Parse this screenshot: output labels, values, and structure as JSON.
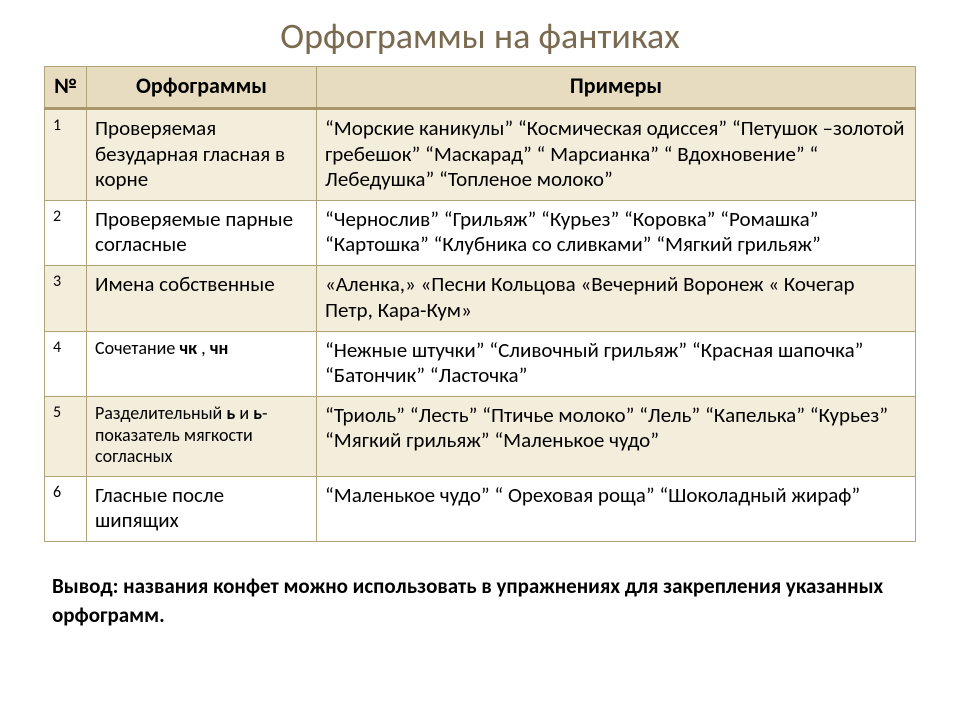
{
  "title": "Орфограммы на фантиках",
  "headers": {
    "num": "№",
    "orfo": "Орфограммы",
    "ex": "Примеры"
  },
  "rows": [
    {
      "n": "1",
      "orfo": "Проверяемая безударная гласная в корне",
      "ex": "“Морские каникулы” “Космическая одиссея” “Петушок –золотой гребешок” “Маскарад” “ Марсианка” “ Вдохновение” “ Лебедушка” “Топленое молоко”"
    },
    {
      "n": "2",
      "orfo": "Проверяемые парные согласные",
      "ex": "“Чернослив” “Грильяж” “Курьез” “Коровка” “Ромашка” “Картошка” “Клубника со сливками” “Мягкий грильяж”"
    },
    {
      "n": "3",
      "orfo": "Имена собственные",
      "ex": "«Аленка,» «Песни Кольцова «Вечерний Воронеж «  Кочегар Петр, Кара-Кум»"
    },
    {
      "n": "4",
      "orfo_pre": "Сочетание ",
      "orfo_b1": "чк",
      "orfo_mid": " , ",
      "orfo_b2": "чн",
      "ex": "“Нежные штучки” “Сливочный грильяж” “Красная шапочка” “Батончик” “Ласточка”"
    },
    {
      "n": "5",
      "orfo_pre": "Разделительный ",
      "orfo_b1": "ь",
      "orfo_mid": " и ",
      "orfo_b2": "ь",
      "orfo_post": "- показатель мягкости согласных",
      "ex": "“Триоль” “Лесть” “Птичье молоко” “Лель” “Капелька” “Курьез” “Мягкий грильяж” “Маленькое чудо”"
    },
    {
      "n": "6",
      "orfo": "Гласные после шипящих",
      "ex": "“Маленькое чудо” “ Ореховая роща” “Шоколадный жираф”"
    }
  ],
  "conclusion": "Вывод:  названия конфет можно использовать в упражнениях для закрепления указанных орфограмм.",
  "style": {
    "title_color": "#7a6a4f",
    "header_bg": "#e7dcbf",
    "band_bg": "#f3eddc",
    "border_color": "#b0a37a",
    "header_border_bottom": "#a99769",
    "font_body": 21,
    "font_title": 36
  }
}
